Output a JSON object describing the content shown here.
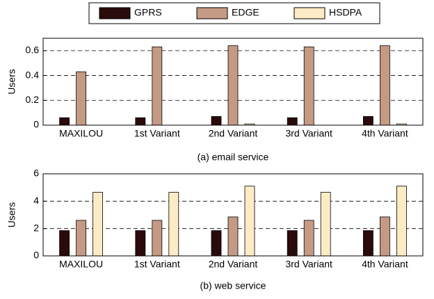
{
  "chart_data": [
    {
      "type": "bar",
      "title": "(a) email service",
      "y_label": "Users",
      "categories": [
        "MAXILOU",
        "1st Variant",
        "2nd Variant",
        "3rd Variant",
        "4th Variant"
      ],
      "series": [
        {
          "name": "GPRS",
          "color": "#2a0a0a",
          "values": [
            0.06,
            0.06,
            0.07,
            0.06,
            0.07
          ]
        },
        {
          "name": "EDGE",
          "color": "#c49a85",
          "values": [
            0.43,
            0.63,
            0.64,
            0.63,
            0.64
          ]
        },
        {
          "name": "HSDPA",
          "color": "#fcebc4",
          "values": [
            0,
            0,
            0.01,
            0,
            0.01
          ]
        }
      ],
      "ylim": [
        0,
        0.7
      ],
      "yticks": [
        0,
        0.2,
        0.4,
        0.6
      ],
      "grid": true
    },
    {
      "type": "bar",
      "title": "(b) web service",
      "y_label": "Users",
      "categories": [
        "MAXILOU",
        "1st Variant",
        "2nd Variant",
        "3rd Variant",
        "4th Variant"
      ],
      "series": [
        {
          "values": [
            1.85,
            1.85,
            1.85,
            1.85,
            1.85
          ]
        },
        {
          "values": [
            2.6,
            2.6,
            2.85,
            2.6,
            2.85
          ]
        },
        {
          "values": [
            4.65,
            4.65,
            5.1,
            4.65,
            5.1
          ]
        }
      ],
      "ylim": [
        0,
        6
      ],
      "yticks": [
        0,
        2,
        4,
        6
      ],
      "grid": true
    }
  ]
}
